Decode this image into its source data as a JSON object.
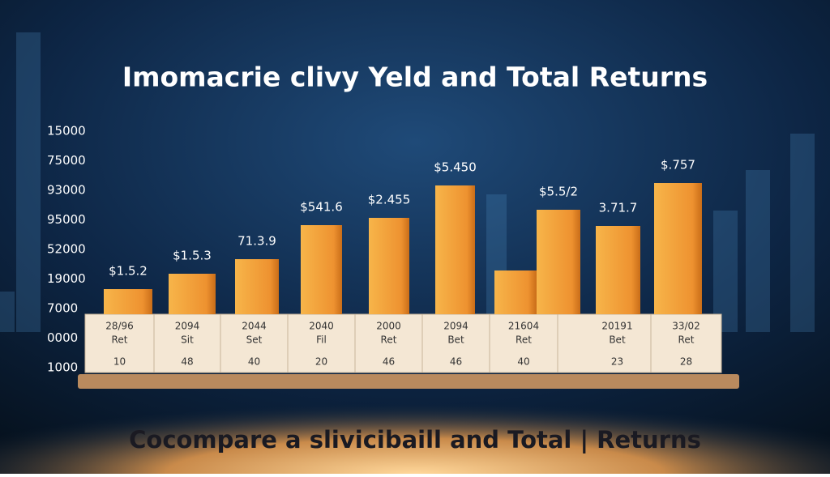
{
  "chart_data": {
    "type": "bar",
    "title": "Imomacrie clivy Yeld and Total Returns",
    "caption": "Cocompare a slivicibaill and Total | Returns",
    "axis_labels": [
      "15000",
      "75000",
      "93000",
      "95000",
      "52000",
      "19000",
      "7000",
      "0000",
      "1000"
    ],
    "values": [
      31,
      50,
      68,
      110,
      119,
      159,
      54,
      129,
      109,
      162
    ],
    "value_labels": [
      "$1.5.2",
      "$1.5.3",
      "71.3.9",
      "$541.6",
      "$2.455",
      "$5.450",
      null,
      "$5.5/2",
      "3.71.7",
      "$.757"
    ],
    "color": "#f0962e",
    "table": [
      [
        "28/96",
        "Ret",
        "10"
      ],
      [
        "2094",
        "Sit",
        "48"
      ],
      [
        "2044",
        "Set",
        "40"
      ],
      [
        "2040",
        "Fil",
        "20"
      ],
      [
        "2000",
        "Ret",
        "46"
      ],
      [
        "2094",
        "Bet",
        "46"
      ],
      [
        "21604",
        "Ret",
        "40"
      ],
      [
        "20191",
        "Bet",
        "23"
      ],
      [
        "33/02",
        "Ret",
        "28"
      ]
    ]
  }
}
